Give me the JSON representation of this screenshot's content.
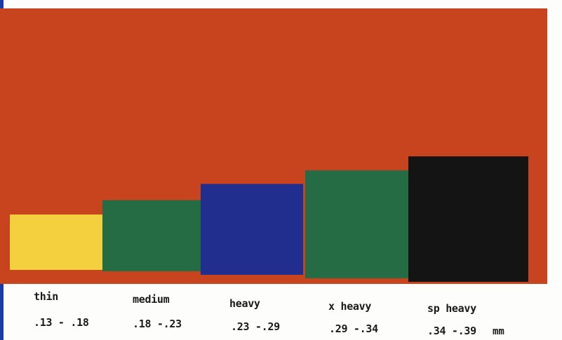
{
  "colors": {
    "background_panel": "#c8441f",
    "page": "#fdfdfb",
    "edge": "#1c3aa8"
  },
  "chart_data": {
    "type": "bar",
    "categories": [
      "thin",
      "medium",
      "heavy",
      "x heavy",
      "sp heavy"
    ],
    "ranges": [
      ".13 - .18",
      ".18 -.23",
      ".23 -.29",
      ".29 -.34",
      ".34 -.39"
    ],
    "unit": "mm",
    "values": [
      0.18,
      0.23,
      0.29,
      0.34,
      0.39
    ],
    "ylim": [
      0,
      0.85
    ],
    "grid": false,
    "series_colors": [
      "#f4d03f",
      "#256b44",
      "#222e8e",
      "#256b44",
      "#141414"
    ]
  }
}
